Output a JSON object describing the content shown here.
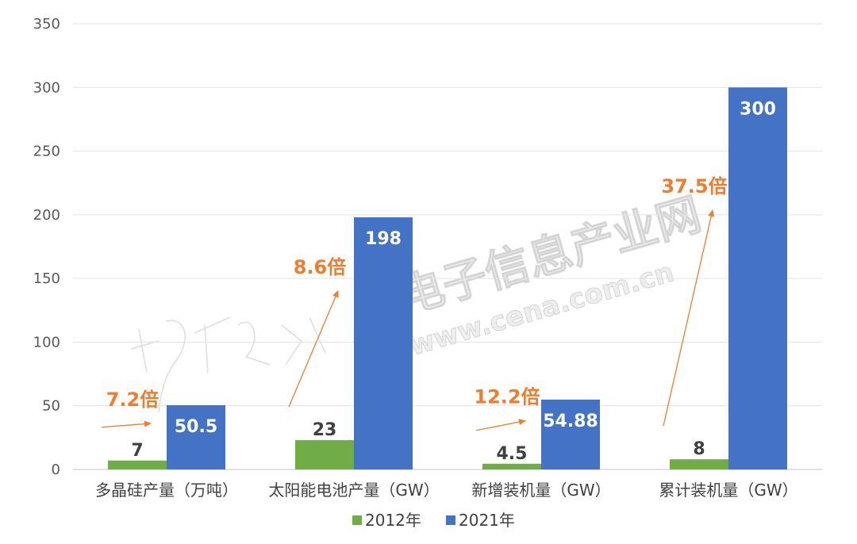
{
  "chart_data": {
    "type": "bar",
    "categories": [
      "多晶硅产量（万吨）",
      "太阳能电池产量（GW）",
      "新增装机量（GW）",
      "累计装机量（GW）"
    ],
    "series": [
      {
        "name": "2012年",
        "values": [
          7,
          23,
          4.5,
          8
        ],
        "labels": [
          "7",
          "23",
          "4.5",
          "8"
        ],
        "color": "#70AD47"
      },
      {
        "name": "2021年",
        "values": [
          50.5,
          198,
          54.88,
          300
        ],
        "labels": [
          "50.5",
          "198",
          "54.88",
          "300"
        ],
        "color": "#4472C4"
      }
    ],
    "annotations": [
      "7.2倍",
      "8.6倍",
      "12.2倍",
      "37.5倍"
    ],
    "annotation_color": "#ED7D31",
    "ylim": [
      0,
      350
    ],
    "yticks": [
      "0",
      "50",
      "100",
      "150",
      "200",
      "250",
      "300",
      "350"
    ],
    "grid": true,
    "legend": "bottom",
    "title": "",
    "xlabel": "",
    "ylabel": ""
  },
  "watermark": {
    "line1": "电子信息产业网",
    "line2": "www.cena.com.cn"
  }
}
